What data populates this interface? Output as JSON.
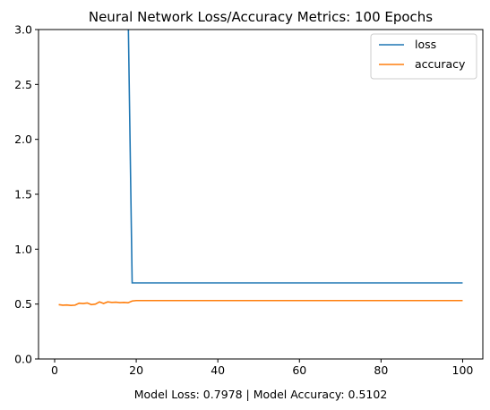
{
  "chart_data": {
    "type": "line",
    "title": "Neural Network Loss/Accuracy Metrics: 100 Epochs",
    "xlabel": "Model Loss: 0.7978 | Model Accuracy: 0.5102",
    "ylabel": "",
    "xlim": [
      -3.95,
      104.95
    ],
    "ylim": [
      0,
      3.0
    ],
    "x_ticks": [
      0,
      20,
      40,
      60,
      80,
      100
    ],
    "y_ticks": [
      0.0,
      0.5,
      1.0,
      1.5,
      2.0,
      2.5,
      3.0
    ],
    "x_tick_labels": [
      "0",
      "20",
      "40",
      "60",
      "80",
      "100"
    ],
    "y_tick_labels": [
      "0.0",
      "0.5",
      "1.0",
      "1.5",
      "2.0",
      "2.5",
      "3.0"
    ],
    "grid": false,
    "legend_position": "top-right",
    "series": [
      {
        "name": "loss",
        "color": "#1f77b4",
        "x": [
          18,
          19,
          20,
          30,
          40,
          50,
          60,
          70,
          80,
          90,
          100
        ],
        "y": [
          3.2,
          0.693,
          0.693,
          0.693,
          0.693,
          0.693,
          0.693,
          0.693,
          0.693,
          0.693,
          0.693
        ]
      },
      {
        "name": "accuracy",
        "color": "#ff7f0e",
        "x": [
          1,
          2,
          3,
          4,
          5,
          6,
          7,
          8,
          9,
          10,
          11,
          12,
          13,
          14,
          15,
          16,
          17,
          18,
          19,
          20,
          25,
          30,
          40,
          50,
          60,
          70,
          80,
          90,
          100
        ],
        "y": [
          0.495,
          0.49,
          0.492,
          0.488,
          0.49,
          0.508,
          0.505,
          0.51,
          0.495,
          0.5,
          0.52,
          0.505,
          0.52,
          0.515,
          0.517,
          0.513,
          0.515,
          0.512,
          0.528,
          0.532,
          0.532,
          0.532,
          0.532,
          0.532,
          0.532,
          0.532,
          0.532,
          0.532,
          0.532
        ]
      }
    ]
  }
}
